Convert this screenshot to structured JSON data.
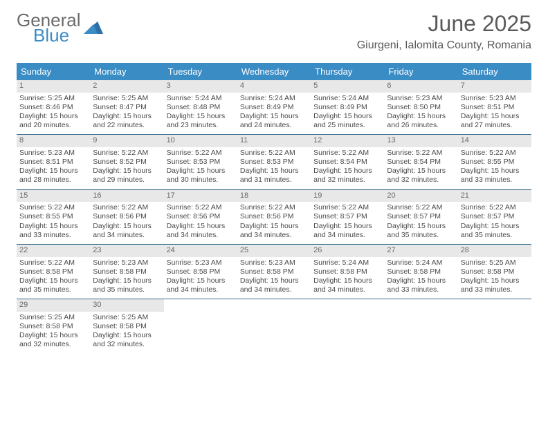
{
  "logo": {
    "word1": "General",
    "word2": "Blue"
  },
  "title": "June 2025",
  "subtitle": "Giurgeni, Ialomita County, Romania",
  "colors": {
    "header_bg": "#3a8cc4",
    "header_text": "#ffffff",
    "daynum_bg": "#e8e8e8",
    "daynum_text": "#6a6a6a",
    "body_text": "#4a4a4a",
    "week_border": "#3a6a8c",
    "title_text": "#5a5a5a",
    "logo_blue": "#3a8cc4",
    "logo_gray": "#6b6b6b"
  },
  "day_names": [
    "Sunday",
    "Monday",
    "Tuesday",
    "Wednesday",
    "Thursday",
    "Friday",
    "Saturday"
  ],
  "weeks": [
    [
      {
        "n": "1",
        "sr": "5:25 AM",
        "ss": "8:46 PM",
        "dl": "15 hours and 20 minutes."
      },
      {
        "n": "2",
        "sr": "5:25 AM",
        "ss": "8:47 PM",
        "dl": "15 hours and 22 minutes."
      },
      {
        "n": "3",
        "sr": "5:24 AM",
        "ss": "8:48 PM",
        "dl": "15 hours and 23 minutes."
      },
      {
        "n": "4",
        "sr": "5:24 AM",
        "ss": "8:49 PM",
        "dl": "15 hours and 24 minutes."
      },
      {
        "n": "5",
        "sr": "5:24 AM",
        "ss": "8:49 PM",
        "dl": "15 hours and 25 minutes."
      },
      {
        "n": "6",
        "sr": "5:23 AM",
        "ss": "8:50 PM",
        "dl": "15 hours and 26 minutes."
      },
      {
        "n": "7",
        "sr": "5:23 AM",
        "ss": "8:51 PM",
        "dl": "15 hours and 27 minutes."
      }
    ],
    [
      {
        "n": "8",
        "sr": "5:23 AM",
        "ss": "8:51 PM",
        "dl": "15 hours and 28 minutes."
      },
      {
        "n": "9",
        "sr": "5:22 AM",
        "ss": "8:52 PM",
        "dl": "15 hours and 29 minutes."
      },
      {
        "n": "10",
        "sr": "5:22 AM",
        "ss": "8:53 PM",
        "dl": "15 hours and 30 minutes."
      },
      {
        "n": "11",
        "sr": "5:22 AM",
        "ss": "8:53 PM",
        "dl": "15 hours and 31 minutes."
      },
      {
        "n": "12",
        "sr": "5:22 AM",
        "ss": "8:54 PM",
        "dl": "15 hours and 32 minutes."
      },
      {
        "n": "13",
        "sr": "5:22 AM",
        "ss": "8:54 PM",
        "dl": "15 hours and 32 minutes."
      },
      {
        "n": "14",
        "sr": "5:22 AM",
        "ss": "8:55 PM",
        "dl": "15 hours and 33 minutes."
      }
    ],
    [
      {
        "n": "15",
        "sr": "5:22 AM",
        "ss": "8:55 PM",
        "dl": "15 hours and 33 minutes."
      },
      {
        "n": "16",
        "sr": "5:22 AM",
        "ss": "8:56 PM",
        "dl": "15 hours and 34 minutes."
      },
      {
        "n": "17",
        "sr": "5:22 AM",
        "ss": "8:56 PM",
        "dl": "15 hours and 34 minutes."
      },
      {
        "n": "18",
        "sr": "5:22 AM",
        "ss": "8:56 PM",
        "dl": "15 hours and 34 minutes."
      },
      {
        "n": "19",
        "sr": "5:22 AM",
        "ss": "8:57 PM",
        "dl": "15 hours and 34 minutes."
      },
      {
        "n": "20",
        "sr": "5:22 AM",
        "ss": "8:57 PM",
        "dl": "15 hours and 35 minutes."
      },
      {
        "n": "21",
        "sr": "5:22 AM",
        "ss": "8:57 PM",
        "dl": "15 hours and 35 minutes."
      }
    ],
    [
      {
        "n": "22",
        "sr": "5:22 AM",
        "ss": "8:58 PM",
        "dl": "15 hours and 35 minutes."
      },
      {
        "n": "23",
        "sr": "5:23 AM",
        "ss": "8:58 PM",
        "dl": "15 hours and 35 minutes."
      },
      {
        "n": "24",
        "sr": "5:23 AM",
        "ss": "8:58 PM",
        "dl": "15 hours and 34 minutes."
      },
      {
        "n": "25",
        "sr": "5:23 AM",
        "ss": "8:58 PM",
        "dl": "15 hours and 34 minutes."
      },
      {
        "n": "26",
        "sr": "5:24 AM",
        "ss": "8:58 PM",
        "dl": "15 hours and 34 minutes."
      },
      {
        "n": "27",
        "sr": "5:24 AM",
        "ss": "8:58 PM",
        "dl": "15 hours and 33 minutes."
      },
      {
        "n": "28",
        "sr": "5:25 AM",
        "ss": "8:58 PM",
        "dl": "15 hours and 33 minutes."
      }
    ],
    [
      {
        "n": "29",
        "sr": "5:25 AM",
        "ss": "8:58 PM",
        "dl": "15 hours and 32 minutes."
      },
      {
        "n": "30",
        "sr": "5:25 AM",
        "ss": "8:58 PM",
        "dl": "15 hours and 32 minutes."
      },
      null,
      null,
      null,
      null,
      null
    ]
  ],
  "labels": {
    "sunrise": "Sunrise:",
    "sunset": "Sunset:",
    "daylight": "Daylight:"
  }
}
